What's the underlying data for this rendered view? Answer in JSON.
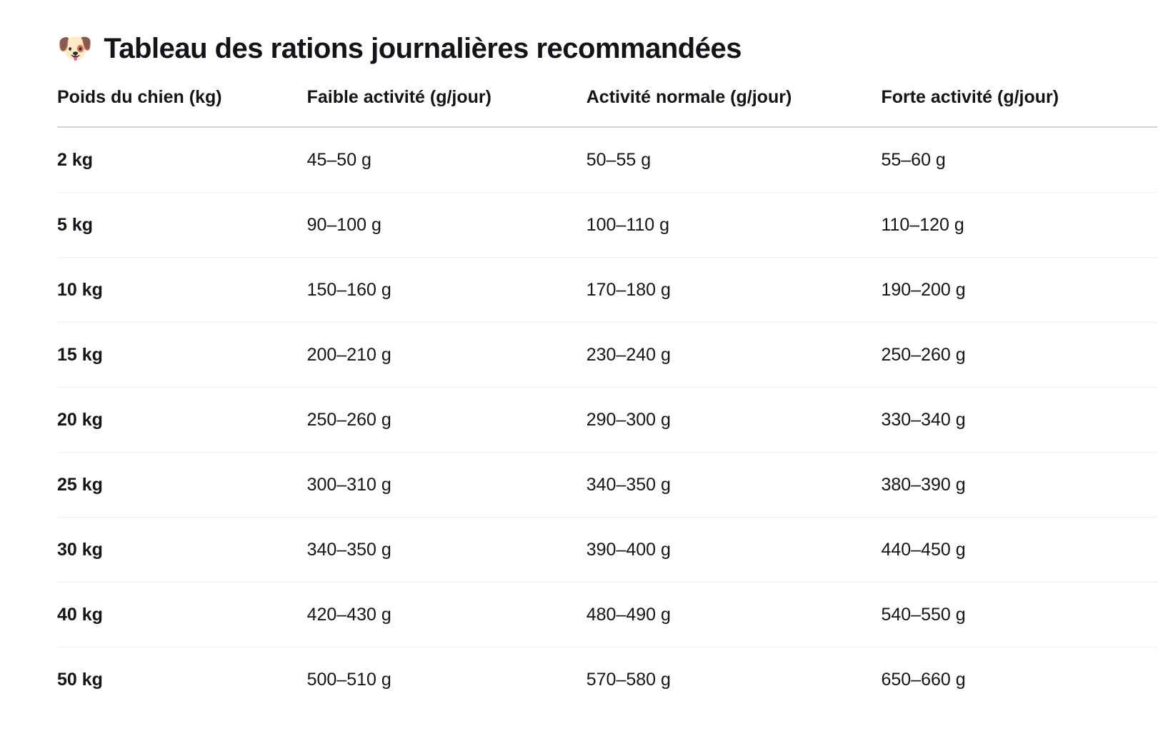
{
  "title": {
    "emoji": "🐶",
    "text": "Tableau des rations journalières recommandées"
  },
  "colors": {
    "text": "#121417",
    "header_divider": "#d4d4d4",
    "row_divider": "#ededed",
    "background": "#ffffff"
  },
  "chart_data": {
    "type": "table",
    "title": "Tableau des rations journalières recommandées",
    "columns": [
      "Poids du chien (kg)",
      "Faible activité (g/jour)",
      "Activité normale (g/jour)",
      "Forte activité (g/jour)"
    ],
    "rows": [
      {
        "cells": [
          "2 kg",
          "45–50 g",
          "50–55 g",
          "55–60 g"
        ]
      },
      {
        "cells": [
          "5 kg",
          "90–100 g",
          "100–110 g",
          "110–120 g"
        ]
      },
      {
        "cells": [
          "10 kg",
          "150–160 g",
          "170–180 g",
          "190–200 g"
        ]
      },
      {
        "cells": [
          "15 kg",
          "200–210 g",
          "230–240 g",
          "250–260 g"
        ]
      },
      {
        "cells": [
          "20 kg",
          "250–260 g",
          "290–300 g",
          "330–340 g"
        ]
      },
      {
        "cells": [
          "25 kg",
          "300–310 g",
          "340–350 g",
          "380–390 g"
        ]
      },
      {
        "cells": [
          "30 kg",
          "340–350 g",
          "390–400 g",
          "440–450 g"
        ]
      },
      {
        "cells": [
          "40 kg",
          "420–430 g",
          "480–490 g",
          "540–550 g"
        ]
      },
      {
        "cells": [
          "50 kg",
          "500–510 g",
          "570–580 g",
          "650–660 g"
        ]
      }
    ]
  }
}
